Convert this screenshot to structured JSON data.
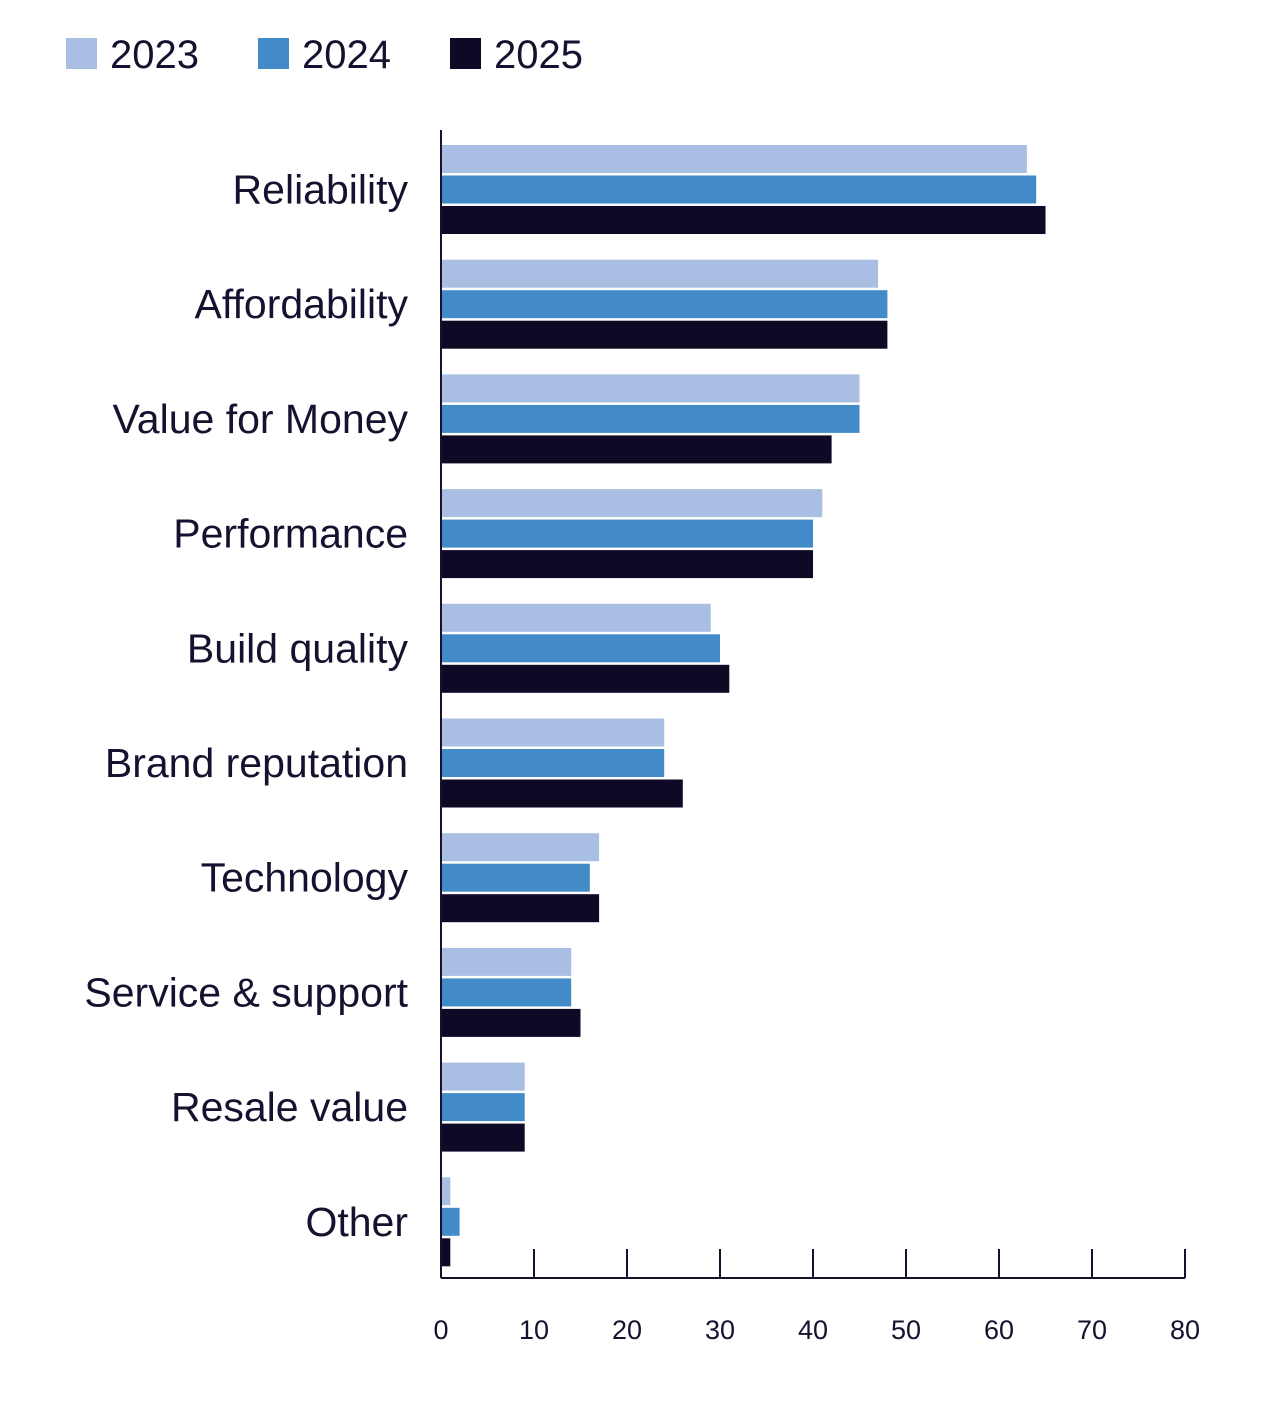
{
  "chart_data": {
    "type": "bar",
    "orientation": "horizontal",
    "title": "",
    "xlabel": "",
    "ylabel": "",
    "categories": [
      "Reliability",
      "Affordability",
      "Value for Money",
      "Performance",
      "Build quality",
      "Brand reputation",
      "Technology",
      "Service & support",
      "Resale value",
      "Other"
    ],
    "series": [
      {
        "name": "2023",
        "color": "#a8bfe3",
        "values": [
          63,
          47,
          45,
          41,
          29,
          24,
          17,
          14,
          9,
          1
        ]
      },
      {
        "name": "2024",
        "color": "#438bc8",
        "values": [
          64,
          48,
          45,
          40,
          30,
          24,
          16,
          14,
          9,
          2
        ]
      },
      {
        "name": "2025",
        "color": "#0e0a26",
        "values": [
          65,
          48,
          42,
          40,
          31,
          26,
          17,
          15,
          9,
          1
        ]
      }
    ],
    "xlim": [
      0,
      80
    ],
    "xticks": [
      "0",
      "10",
      "20",
      "30",
      "40",
      "50",
      "60",
      "70",
      "80"
    ],
    "grid": false,
    "legend_position": "top-left"
  }
}
